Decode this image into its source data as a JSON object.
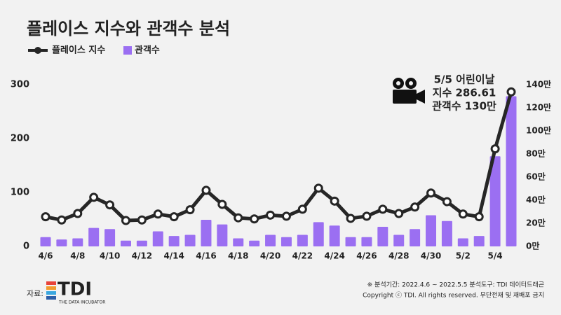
{
  "chart_data": {
    "type": "bar-line",
    "title": "플레이스 지수와 관객수 분석",
    "categories": [
      "4/6",
      null,
      "4/8",
      null,
      "4/10",
      null,
      "4/12",
      null,
      "4/14",
      null,
      "4/16",
      null,
      "4/18",
      null,
      "4/20",
      null,
      "4/22",
      null,
      "4/24",
      null,
      "4/26",
      null,
      "4/28",
      null,
      "4/30",
      null,
      "5/2",
      null,
      "5/4",
      null
    ],
    "series": [
      {
        "name": "플레이스 지수",
        "type": "line",
        "axis": "y",
        "color": "#262626",
        "values": [
          55,
          49,
          61,
          91,
          77,
          48,
          49,
          60,
          55,
          68,
          104,
          78,
          53,
          51,
          58,
          56,
          69,
          108,
          84,
          52,
          56,
          69,
          61,
          73,
          99,
          83,
          60,
          55,
          181,
          286.61
        ]
      },
      {
        "name": "관객수",
        "type": "bar",
        "axis": "y2",
        "color": "#9b6ff2",
        "values": [
          8,
          6,
          7,
          16,
          15,
          5,
          5,
          13,
          9,
          10,
          23,
          19,
          7,
          5,
          10,
          8,
          10,
          21,
          18,
          8,
          8,
          17,
          10,
          15,
          27,
          22,
          7,
          9,
          78,
          130
        ]
      }
    ],
    "ylim": [
      0,
      300
    ],
    "yticks": [
      0,
      100,
      200,
      300
    ],
    "y2lim": [
      0,
      140
    ],
    "y2ticks": [
      {
        "value": 0,
        "label": "0만"
      },
      {
        "value": 20,
        "label": "20만"
      },
      {
        "value": 40,
        "label": "40만"
      },
      {
        "value": 60,
        "label": "60만"
      },
      {
        "value": 80,
        "label": "80만"
      },
      {
        "value": 100,
        "label": "100만"
      },
      {
        "value": 120,
        "label": "120만"
      },
      {
        "value": 140,
        "label": "140만"
      }
    ],
    "annotations": [
      "5/5 어린이날",
      "지수 286.61",
      "관객수 130만"
    ],
    "legend": "top-left"
  },
  "footer": {
    "source_label": "자료:",
    "logo": "TDI",
    "logo_sub": "THE DATA INCUBATOR",
    "note1": "※ 분석기간: 2022.4.6 ~ 2022.5.5   분석도구: TDI 데이터드래곤",
    "note2": "Copyright ⓒ TDI. All rights reserved. 무단전재 및 재배포 금지"
  }
}
